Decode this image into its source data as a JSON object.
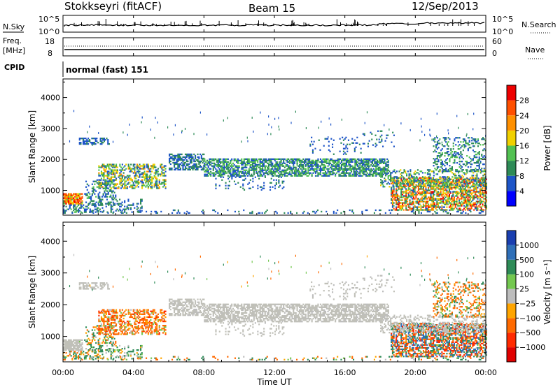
{
  "header": {
    "station": "Stokkseyri (fitACF)",
    "beam": "Beam 15",
    "date": "12/Sep/2013"
  },
  "summary_panels": {
    "nsky_label": "N.Sky",
    "nsky_ticks": [
      "10^5",
      "10^0"
    ],
    "nsearch_label": "N.Search",
    "nsearch_ticks": [
      "10^5",
      "10^0"
    ],
    "freq_label_1": "Freq.",
    "freq_label_2": "[MHz]",
    "freq_ticks": [
      "18",
      "8"
    ],
    "nave_label": "Nave",
    "nave_ticks": [
      "60",
      "0"
    ],
    "cpid_label": "CPID",
    "cpid_text": "normal (fast) 151"
  },
  "colors": {
    "power": [
      "#0000ff",
      "#1e55c8",
      "#2e8b57",
      "#52c152",
      "#f0d000",
      "#ff9000",
      "#ff5000",
      "#ee0000"
    ],
    "velocity": [
      "#1a3fb0",
      "#2f6fb8",
      "#2e8b57",
      "#74c850",
      "#bdbdbd",
      "#ffa500",
      "#ff6a00",
      "#ff2a00",
      "#e00000"
    ],
    "ground_scatter": "#c0c0b8"
  },
  "chart_data": [
    {
      "type": "heatmap",
      "quantity": "power",
      "xlabel": "",
      "ylabel": "Slant Range [km]",
      "x_ticks": [
        "00:00",
        "04:00",
        "08:00",
        "12:00",
        "16:00",
        "20:00",
        "00:00"
      ],
      "y_ticks": [
        "4000",
        "3000",
        "2000",
        "1000"
      ],
      "xlim_hours": [
        0,
        24
      ],
      "ylim_km": [
        200,
        4600
      ],
      "colorbar_label": "Power [dB]",
      "colorbar_ticks": [
        "28",
        "24",
        "20",
        "16",
        "12",
        "8",
        "4"
      ],
      "colorbar_range": [
        0,
        32
      ]
    },
    {
      "type": "heatmap",
      "quantity": "velocity",
      "xlabel": "Time UT",
      "ylabel": "Slant Range [km]",
      "x_ticks": [
        "00:00",
        "04:00",
        "08:00",
        "12:00",
        "16:00",
        "20:00",
        "00:00"
      ],
      "y_ticks": [
        "4000",
        "3000",
        "2000",
        "1000"
      ],
      "xlim_hours": [
        0,
        24
      ],
      "ylim_km": [
        200,
        4600
      ],
      "colorbar_label": "Velocity [m s⁻¹]",
      "colorbar_ticks": [
        "1000",
        "500",
        "100",
        "25",
        "−25",
        "−100",
        "−500",
        "−1000"
      ]
    }
  ]
}
